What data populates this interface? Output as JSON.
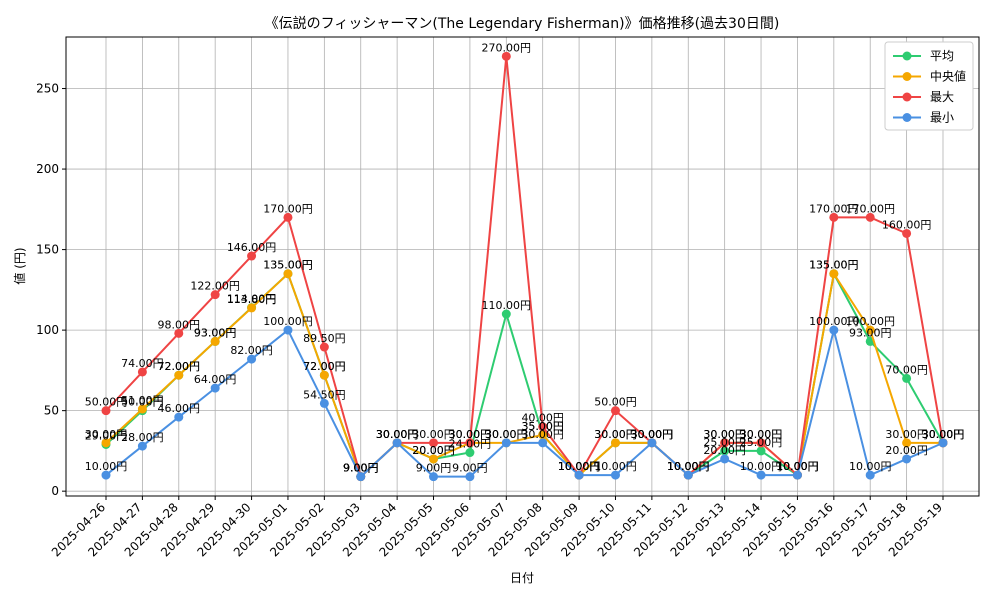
{
  "chart_data": {
    "type": "line",
    "title": "《伝説のフィッシャーマン(The Legendary Fisherman)》価格推移(過去30日間)",
    "xlabel": "日付",
    "ylabel": "値 (円)",
    "ylim": [
      -3,
      282
    ],
    "yticks": [
      0,
      50,
      100,
      150,
      200,
      250
    ],
    "grid": true,
    "legend_position": "top-right",
    "label_suffix": "円",
    "categories": [
      "2025-04-26",
      "2025-04-27",
      "2025-04-28",
      "2025-04-29",
      "2025-04-30",
      "2025-05-01",
      "2025-05-02",
      "2025-05-03",
      "2025-05-04",
      "2025-05-05",
      "2025-05-06",
      "2025-05-07",
      "2025-05-08",
      "2025-05-09",
      "2025-05-10",
      "2025-05-11",
      "2025-05-12",
      "2025-05-13",
      "2025-05-14",
      "2025-05-15",
      "2025-05-16",
      "2025-05-17",
      "2025-05-18",
      "2025-05-19"
    ],
    "series": [
      {
        "name": "平均",
        "color": "#2ecc71",
        "values": [
          29.0,
          50.0,
          72.0,
          93.0,
          114.0,
          135.0,
          72.0,
          9.0,
          30.0,
          20.0,
          24.0,
          110.0,
          35.0,
          10.0,
          30.0,
          30.0,
          10.0,
          25.0,
          25.0,
          10.0,
          135.0,
          93.0,
          70.0,
          30.0
        ]
      },
      {
        "name": "中央値",
        "color": "#f5a700",
        "values": [
          30.0,
          51.0,
          72.0,
          93.0,
          113.8,
          135.0,
          72.0,
          9.0,
          30.0,
          20.0,
          30.0,
          30.0,
          35.0,
          10.0,
          30.0,
          30.0,
          10.0,
          30.0,
          30.0,
          10.0,
          135.0,
          100.0,
          30.0,
          30.0
        ]
      },
      {
        "name": "最大",
        "color": "#ef4444",
        "values": [
          50.0,
          74.0,
          98.0,
          122.0,
          146.0,
          170.0,
          89.5,
          9.0,
          30.0,
          30.0,
          30.0,
          270.0,
          40.0,
          10.0,
          50.0,
          30.0,
          10.0,
          30.0,
          30.0,
          10.0,
          170.0,
          170.0,
          160.0,
          30.0
        ]
      },
      {
        "name": "最小",
        "color": "#4a90e2",
        "values": [
          10.0,
          28.0,
          46.0,
          64.0,
          82.0,
          100.0,
          54.5,
          9.0,
          30.0,
          9.0,
          9.0,
          30.0,
          30.0,
          10.0,
          10.0,
          30.0,
          10.0,
          20.0,
          10.0,
          10.0,
          100.0,
          10.0,
          20.0,
          30.0
        ]
      }
    ]
  }
}
